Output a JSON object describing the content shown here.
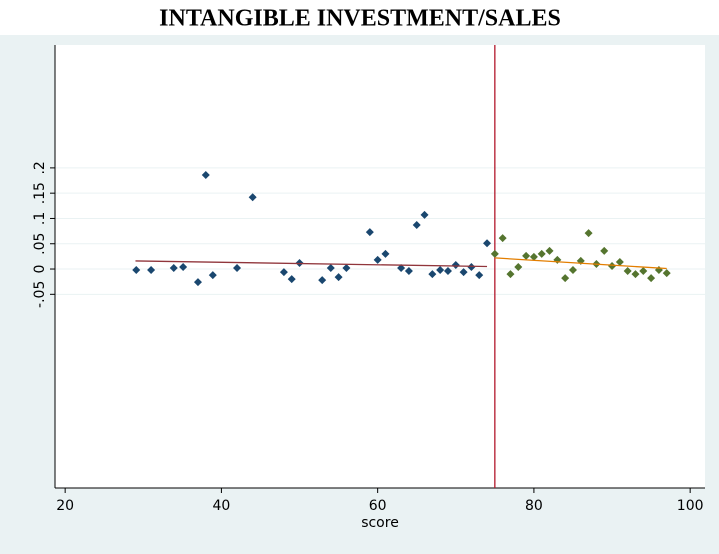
{
  "chart_data": {
    "type": "scatter",
    "title": "INTANGIBLE INVESTMENT/SALES",
    "x_label": "score",
    "xlim": [
      18.7,
      101.9
    ],
    "xticks": [
      20,
      40,
      60,
      80,
      100
    ],
    "ylim": [
      -0.433,
      0.443
    ],
    "yticks": [
      {
        "value": -0.05,
        "label": "-.05"
      },
      {
        "value": 0,
        "label": "0"
      },
      {
        "value": 0.05,
        "label": ".05"
      },
      {
        "value": 0.1,
        "label": ".1"
      },
      {
        "value": 0.15,
        "label": ".15"
      },
      {
        "value": 0.2,
        "label": ".2"
      }
    ],
    "grid": true,
    "vline": 75,
    "vline_color": "#b2182b",
    "series": [
      {
        "type": "scatter",
        "color": "#1a476f",
        "x": [
          29.1,
          31,
          33.9,
          35.1,
          37,
          38,
          38.9,
          42,
          44,
          48,
          49,
          50,
          52.9,
          54,
          55,
          56,
          59,
          60,
          61,
          63,
          64,
          65,
          66,
          67,
          68,
          69,
          70,
          71,
          72,
          73,
          74
        ],
        "values": [
          -0.002,
          -0.002,
          0.002,
          0.004,
          -0.026,
          0.186,
          -0.012,
          0.002,
          0.142,
          -0.006,
          -0.02,
          0.012,
          -0.022,
          0.002,
          -0.016,
          0.002,
          0.073,
          0.018,
          0.03,
          0.002,
          -0.004,
          0.087,
          0.107,
          -0.01,
          -0.002,
          -0.004,
          0.008,
          -0.006,
          0.004,
          -0.012,
          0.051
        ]
      },
      {
        "type": "scatter",
        "color": "#55752f",
        "x": [
          75,
          76,
          77,
          78,
          79,
          80,
          81,
          82,
          83,
          84,
          85,
          86,
          87,
          88,
          89,
          90,
          91,
          92,
          93,
          94,
          95,
          96,
          97
        ],
        "values": [
          0.03,
          0.061,
          -0.01,
          0.004,
          0.026,
          0.024,
          0.03,
          0.036,
          0.018,
          -0.018,
          -0.002,
          0.016,
          0.071,
          0.01,
          0.036,
          0.006,
          0.014,
          -0.004,
          -0.01,
          -0.004,
          -0.018,
          -0.002,
          -0.008
        ]
      },
      {
        "type": "line",
        "color": "#90353b",
        "x": [
          29,
          74
        ],
        "values": [
          0.016,
          0.005
        ]
      },
      {
        "type": "line",
        "color": "#e37e00",
        "x": [
          75,
          97
        ],
        "values": [
          0.022,
          0.001
        ]
      }
    ]
  }
}
